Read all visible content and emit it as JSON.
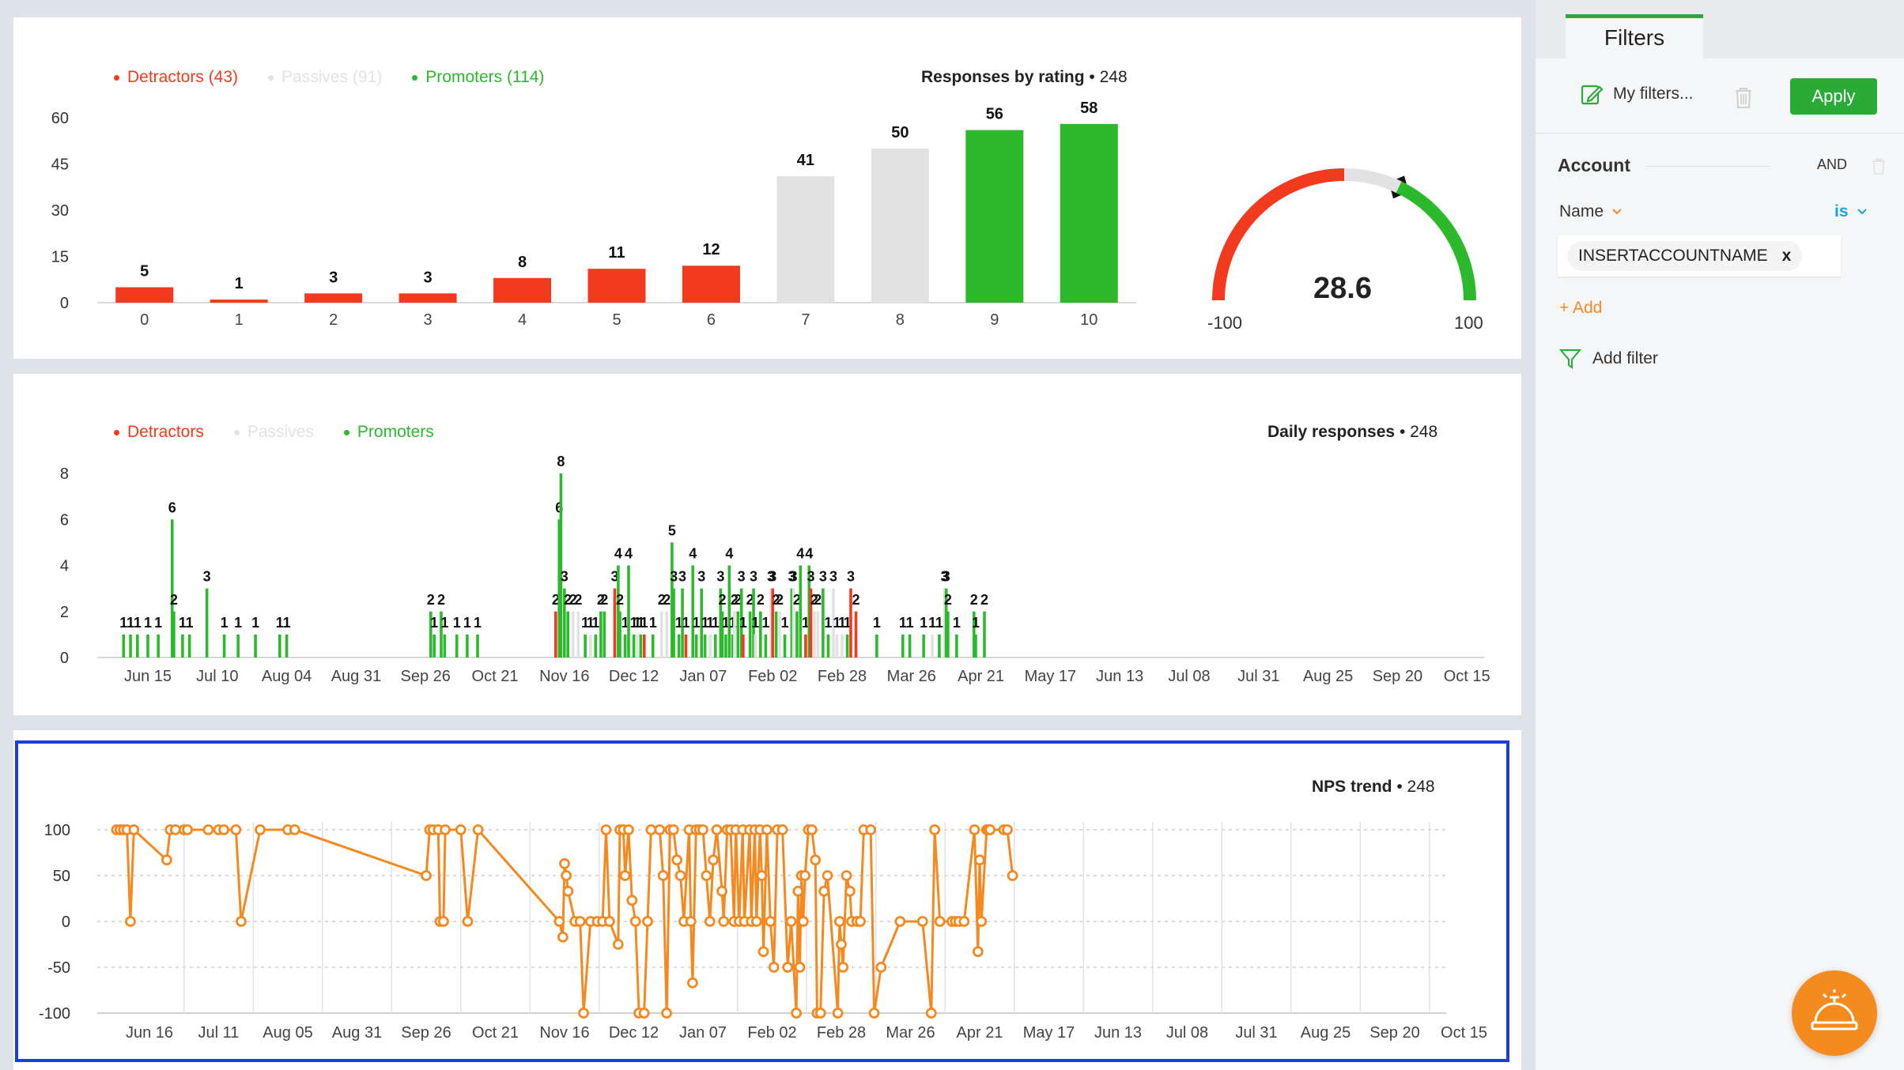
{
  "colors": {
    "detractor": "#f23a1f",
    "passive": "#e2e2e2",
    "promoter": "#2cba2c",
    "trend": "#f5891f",
    "accent": "#2aab37"
  },
  "rating_panel": {
    "legend": [
      {
        "label": "Detractors (43)",
        "color": "#f23a1f"
      },
      {
        "label": "Passives (91)",
        "color": "#d6d6d6"
      },
      {
        "label": "Promoters (114)",
        "color": "#2cba2c"
      }
    ],
    "title": "Responses by rating",
    "count": "• 248"
  },
  "gauge": {
    "value": "28.6",
    "min_label": "-100",
    "max_label": "100",
    "score": 28.6
  },
  "daily_panel": {
    "legend": [
      {
        "label": "Detractors",
        "color": "#f23a1f"
      },
      {
        "label": "Passives",
        "color": "#d6d6d6"
      },
      {
        "label": "Promoters",
        "color": "#2cba2c"
      }
    ],
    "title": "Daily responses",
    "count": "• 248"
  },
  "trend_panel": {
    "title": "NPS trend",
    "count": "• 248"
  },
  "chart_data": [
    {
      "type": "bar",
      "title": "Responses by rating",
      "categories": [
        "0",
        "1",
        "2",
        "3",
        "4",
        "5",
        "6",
        "7",
        "8",
        "9",
        "10"
      ],
      "values": [
        5,
        1,
        3,
        3,
        8,
        11,
        12,
        41,
        50,
        56,
        58
      ],
      "value_labels": [
        "5",
        "1",
        "3",
        "3",
        "8",
        "11",
        "12",
        "41",
        "50",
        "56",
        "58"
      ],
      "yticks": [
        "0",
        "15",
        "30",
        "45",
        "60"
      ],
      "ylim": [
        0,
        60
      ]
    },
    {
      "type": "bar",
      "title": "Daily responses",
      "xticks": [
        "Jun 15",
        "Jul 10",
        "Aug 04",
        "Aug 31",
        "Sep 26",
        "Oct 21",
        "Nov 16",
        "Dec 12",
        "Jan 07",
        "Feb 02",
        "Feb 28",
        "Mar 26",
        "Apr 21",
        "May 17",
        "Jun 13",
        "Jul 08",
        "Jul 31",
        "Aug 25",
        "Sep 20",
        "Oct 15"
      ],
      "yticks": [
        "0",
        "2",
        "4",
        "6",
        "8"
      ],
      "ylim": [
        0,
        8
      ],
      "bars": [
        {
          "x": 0.3,
          "v": 1,
          "c": "p"
        },
        {
          "x": 0.5,
          "v": 1,
          "c": "p"
        },
        {
          "x": 0.7,
          "v": 1,
          "c": "p"
        },
        {
          "x": 1.0,
          "v": 1,
          "c": "p"
        },
        {
          "x": 1.3,
          "v": 1,
          "c": "p"
        },
        {
          "x": 1.7,
          "v": 6,
          "c": "p"
        },
        {
          "x": 1.75,
          "v": 2,
          "c": "p"
        },
        {
          "x": 2.0,
          "v": 1,
          "c": "p"
        },
        {
          "x": 2.2,
          "v": 1,
          "c": "p"
        },
        {
          "x": 2.7,
          "v": 3,
          "c": "p"
        },
        {
          "x": 3.2,
          "v": 1,
          "c": "p"
        },
        {
          "x": 3.6,
          "v": 1,
          "c": "p"
        },
        {
          "x": 4.1,
          "v": 1,
          "c": "p"
        },
        {
          "x": 4.8,
          "v": 1,
          "c": "p"
        },
        {
          "x": 5.0,
          "v": 1,
          "c": "p"
        },
        {
          "x": 9.15,
          "v": 2,
          "c": "p"
        },
        {
          "x": 9.25,
          "v": 1,
          "c": "p"
        },
        {
          "x": 9.45,
          "v": 2,
          "c": "p"
        },
        {
          "x": 9.55,
          "v": 1,
          "c": "p"
        },
        {
          "x": 9.9,
          "v": 1,
          "c": "p"
        },
        {
          "x": 10.2,
          "v": 1,
          "c": "p"
        },
        {
          "x": 10.5,
          "v": 1,
          "c": "p"
        },
        {
          "x": 12.75,
          "v": 2,
          "c": "d"
        },
        {
          "x": 12.85,
          "v": 6,
          "c": "p"
        },
        {
          "x": 12.9,
          "v": 8,
          "c": "p"
        },
        {
          "x": 13.0,
          "v": 3,
          "c": "p"
        },
        {
          "x": 13.1,
          "v": 2,
          "c": "p"
        },
        {
          "x": 13.25,
          "v": 2,
          "c": "n"
        },
        {
          "x": 13.4,
          "v": 2,
          "c": "n"
        },
        {
          "x": 13.6,
          "v": 1,
          "c": "p"
        },
        {
          "x": 13.75,
          "v": 1,
          "c": "n"
        },
        {
          "x": 13.9,
          "v": 1,
          "c": "p"
        },
        {
          "x": 14.05,
          "v": 2,
          "c": "p"
        },
        {
          "x": 14.15,
          "v": 2,
          "c": "p"
        },
        {
          "x": 14.45,
          "v": 3,
          "c": "d"
        },
        {
          "x": 14.55,
          "v": 4,
          "c": "p"
        },
        {
          "x": 14.6,
          "v": 2,
          "c": "p"
        },
        {
          "x": 14.75,
          "v": 1,
          "c": "p"
        },
        {
          "x": 14.85,
          "v": 4,
          "c": "p"
        },
        {
          "x": 15.0,
          "v": 1,
          "c": "p"
        },
        {
          "x": 15.1,
          "v": 1,
          "c": "n"
        },
        {
          "x": 15.2,
          "v": 1,
          "c": "p"
        },
        {
          "x": 15.3,
          "v": 1,
          "c": "d"
        },
        {
          "x": 15.55,
          "v": 1,
          "c": "p"
        },
        {
          "x": 15.8,
          "v": 2,
          "c": "n"
        },
        {
          "x": 15.95,
          "v": 2,
          "c": "n"
        },
        {
          "x": 16.1,
          "v": 5,
          "c": "p"
        },
        {
          "x": 16.15,
          "v": 3,
          "c": "p"
        },
        {
          "x": 16.3,
          "v": 1,
          "c": "p"
        },
        {
          "x": 16.4,
          "v": 3,
          "c": "p"
        },
        {
          "x": 16.5,
          "v": 1,
          "c": "d"
        },
        {
          "x": 16.7,
          "v": 4,
          "c": "p"
        },
        {
          "x": 16.8,
          "v": 1,
          "c": "p"
        },
        {
          "x": 16.95,
          "v": 3,
          "c": "p"
        },
        {
          "x": 17.05,
          "v": 1,
          "c": "p"
        },
        {
          "x": 17.2,
          "v": 1,
          "c": "n"
        },
        {
          "x": 17.35,
          "v": 1,
          "c": "p"
        },
        {
          "x": 17.5,
          "v": 3,
          "c": "p"
        },
        {
          "x": 17.55,
          "v": 2,
          "c": "p"
        },
        {
          "x": 17.65,
          "v": 1,
          "c": "p"
        },
        {
          "x": 17.75,
          "v": 4,
          "c": "p"
        },
        {
          "x": 17.85,
          "v": 1,
          "c": "p"
        },
        {
          "x": 17.9,
          "v": 2,
          "c": "n"
        },
        {
          "x": 18.0,
          "v": 2,
          "c": "p"
        },
        {
          "x": 18.1,
          "v": 3,
          "c": "p"
        },
        {
          "x": 18.15,
          "v": 1,
          "c": "d"
        },
        {
          "x": 18.35,
          "v": 2,
          "c": "p"
        },
        {
          "x": 18.45,
          "v": 3,
          "c": "p"
        },
        {
          "x": 18.5,
          "v": 1,
          "c": "n"
        },
        {
          "x": 18.65,
          "v": 2,
          "c": "p"
        },
        {
          "x": 18.8,
          "v": 1,
          "c": "p"
        },
        {
          "x": 18.95,
          "v": 3,
          "c": "n"
        },
        {
          "x": 19.0,
          "v": 3,
          "c": "d"
        },
        {
          "x": 19.1,
          "v": 2,
          "c": "p"
        },
        {
          "x": 19.2,
          "v": 2,
          "c": "n"
        },
        {
          "x": 19.35,
          "v": 1,
          "c": "p"
        },
        {
          "x": 19.55,
          "v": 3,
          "c": "p"
        },
        {
          "x": 19.6,
          "v": 3,
          "c": "n"
        },
        {
          "x": 19.7,
          "v": 2,
          "c": "p"
        },
        {
          "x": 19.8,
          "v": 4,
          "c": "p"
        },
        {
          "x": 19.95,
          "v": 1,
          "c": "d"
        },
        {
          "x": 20.05,
          "v": 4,
          "c": "p"
        },
        {
          "x": 20.1,
          "v": 3,
          "c": "d"
        },
        {
          "x": 20.2,
          "v": 2,
          "c": "n"
        },
        {
          "x": 20.3,
          "v": 2,
          "c": "n"
        },
        {
          "x": 20.45,
          "v": 3,
          "c": "p"
        },
        {
          "x": 20.6,
          "v": 1,
          "c": "p"
        },
        {
          "x": 20.75,
          "v": 3,
          "c": "n"
        },
        {
          "x": 20.85,
          "v": 1,
          "c": "n"
        },
        {
          "x": 21.0,
          "v": 1,
          "c": "n"
        },
        {
          "x": 21.15,
          "v": 1,
          "c": "p"
        },
        {
          "x": 21.25,
          "v": 3,
          "c": "d"
        },
        {
          "x": 21.4,
          "v": 2,
          "c": "d"
        },
        {
          "x": 22.0,
          "v": 1,
          "c": "p"
        },
        {
          "x": 22.75,
          "v": 1,
          "c": "p"
        },
        {
          "x": 22.95,
          "v": 1,
          "c": "p"
        },
        {
          "x": 23.35,
          "v": 1,
          "c": "p"
        },
        {
          "x": 23.6,
          "v": 1,
          "c": "n"
        },
        {
          "x": 23.8,
          "v": 1,
          "c": "p"
        },
        {
          "x": 23.95,
          "v": 3,
          "c": "n"
        },
        {
          "x": 24.0,
          "v": 3,
          "c": "p"
        },
        {
          "x": 24.05,
          "v": 2,
          "c": "p"
        },
        {
          "x": 24.3,
          "v": 1,
          "c": "p"
        },
        {
          "x": 24.8,
          "v": 2,
          "c": "p"
        },
        {
          "x": 24.85,
          "v": 1,
          "c": "p"
        },
        {
          "x": 25.1,
          "v": 2,
          "c": "p"
        }
      ]
    },
    {
      "type": "line",
      "title": "NPS trend",
      "xticks": [
        "Jun 16",
        "Jul 11",
        "Aug 05",
        "Aug 31",
        "Sep 26",
        "Oct 21",
        "Nov 16",
        "Dec 12",
        "Jan 07",
        "Feb 02",
        "Feb 28",
        "Mar 26",
        "Apr 21",
        "May 17",
        "Jun 13",
        "Jul 08",
        "Jul 31",
        "Aug 25",
        "Sep 20",
        "Oct 15"
      ],
      "yticks": [
        "100",
        "50",
        "0",
        "-50",
        "-100"
      ],
      "ylim": [
        -100,
        100
      ],
      "points": [
        [
          0.05,
          100
        ],
        [
          0.15,
          100
        ],
        [
          0.25,
          100
        ],
        [
          0.35,
          100
        ],
        [
          0.45,
          0
        ],
        [
          0.55,
          100
        ],
        [
          1.5,
          67
        ],
        [
          1.6,
          100
        ],
        [
          1.75,
          100
        ],
        [
          2.0,
          100
        ],
        [
          2.1,
          100
        ],
        [
          2.7,
          100
        ],
        [
          3.0,
          100
        ],
        [
          3.15,
          100
        ],
        [
          3.5,
          100
        ],
        [
          3.65,
          0
        ],
        [
          4.2,
          100
        ],
        [
          5.0,
          100
        ],
        [
          5.2,
          100
        ],
        [
          9.0,
          50
        ],
        [
          9.1,
          100
        ],
        [
          9.2,
          100
        ],
        [
          9.35,
          100
        ],
        [
          9.4,
          0
        ],
        [
          9.5,
          0
        ],
        [
          9.55,
          100
        ],
        [
          10.0,
          100
        ],
        [
          10.2,
          0
        ],
        [
          10.5,
          100
        ],
        [
          12.85,
          0
        ],
        [
          12.95,
          -17
        ],
        [
          13.0,
          63
        ],
        [
          13.05,
          50
        ],
        [
          13.1,
          33
        ],
        [
          13.3,
          0
        ],
        [
          13.45,
          0
        ],
        [
          13.55,
          -100
        ],
        [
          13.75,
          0
        ],
        [
          13.95,
          0
        ],
        [
          14.1,
          0
        ],
        [
          14.2,
          100
        ],
        [
          14.3,
          0
        ],
        [
          14.55,
          -25
        ],
        [
          14.6,
          100
        ],
        [
          14.7,
          100
        ],
        [
          14.75,
          50
        ],
        [
          14.85,
          100
        ],
        [
          14.95,
          23
        ],
        [
          15.05,
          0
        ],
        [
          15.15,
          -100
        ],
        [
          15.3,
          -100
        ],
        [
          15.4,
          0
        ],
        [
          15.5,
          100
        ],
        [
          15.75,
          100
        ],
        [
          15.85,
          50
        ],
        [
          15.95,
          -100
        ],
        [
          16.05,
          100
        ],
        [
          16.15,
          100
        ],
        [
          16.25,
          67
        ],
        [
          16.35,
          50
        ],
        [
          16.45,
          0
        ],
        [
          16.6,
          100
        ],
        [
          16.65,
          0
        ],
        [
          16.7,
          -67
        ],
        [
          16.8,
          100
        ],
        [
          16.9,
          100
        ],
        [
          17.0,
          100
        ],
        [
          17.1,
          50
        ],
        [
          17.2,
          0
        ],
        [
          17.3,
          67
        ],
        [
          17.4,
          100
        ],
        [
          17.55,
          33
        ],
        [
          17.6,
          0
        ],
        [
          17.7,
          100
        ],
        [
          17.8,
          100
        ],
        [
          17.9,
          0
        ],
        [
          17.95,
          100
        ],
        [
          18.05,
          0
        ],
        [
          18.15,
          100
        ],
        [
          18.2,
          0
        ],
        [
          18.35,
          100
        ],
        [
          18.4,
          0
        ],
        [
          18.5,
          100
        ],
        [
          18.55,
          0
        ],
        [
          18.65,
          100
        ],
        [
          18.7,
          50
        ],
        [
          18.75,
          -33
        ],
        [
          18.85,
          100
        ],
        [
          18.95,
          0
        ],
        [
          19.05,
          -50
        ],
        [
          19.15,
          100
        ],
        [
          19.3,
          100
        ],
        [
          19.45,
          -50
        ],
        [
          19.55,
          0
        ],
        [
          19.7,
          -100
        ],
        [
          19.75,
          33
        ],
        [
          19.8,
          -50
        ],
        [
          19.85,
          50
        ],
        [
          19.9,
          0
        ],
        [
          19.95,
          50
        ],
        [
          20.05,
          100
        ],
        [
          20.15,
          100
        ],
        [
          20.25,
          67
        ],
        [
          20.3,
          -100
        ],
        [
          20.4,
          -100
        ],
        [
          20.5,
          33
        ],
        [
          20.6,
          50
        ],
        [
          20.9,
          -100
        ],
        [
          20.95,
          0
        ],
        [
          21.0,
          -25
        ],
        [
          21.05,
          -50
        ],
        [
          21.15,
          50
        ],
        [
          21.25,
          33
        ],
        [
          21.3,
          0
        ],
        [
          21.45,
          0
        ],
        [
          21.55,
          0
        ],
        [
          21.65,
          100
        ],
        [
          21.85,
          100
        ],
        [
          21.95,
          -100
        ],
        [
          22.15,
          -50
        ],
        [
          22.7,
          0
        ],
        [
          23.35,
          0
        ],
        [
          23.6,
          -100
        ],
        [
          23.7,
          100
        ],
        [
          23.85,
          0
        ],
        [
          24.2,
          0
        ],
        [
          24.3,
          0
        ],
        [
          24.4,
          0
        ],
        [
          24.55,
          0
        ],
        [
          24.85,
          100
        ],
        [
          24.95,
          -33
        ],
        [
          25.0,
          67
        ],
        [
          25.05,
          0
        ],
        [
          25.2,
          100
        ],
        [
          25.25,
          100
        ],
        [
          25.3,
          100
        ],
        [
          25.7,
          100
        ],
        [
          25.8,
          100
        ],
        [
          25.95,
          50
        ]
      ]
    }
  ],
  "sidebar": {
    "tab_label": "Filters",
    "my_filters": "My filters...",
    "apply": "Apply",
    "account_heading": "Account",
    "and_label": "AND",
    "name_label": "Name",
    "operator": "is",
    "chip_value": "INSERTACCOUNTNAME",
    "chip_remove": "x",
    "add_link": "+ Add",
    "add_filter": "Add filter"
  }
}
